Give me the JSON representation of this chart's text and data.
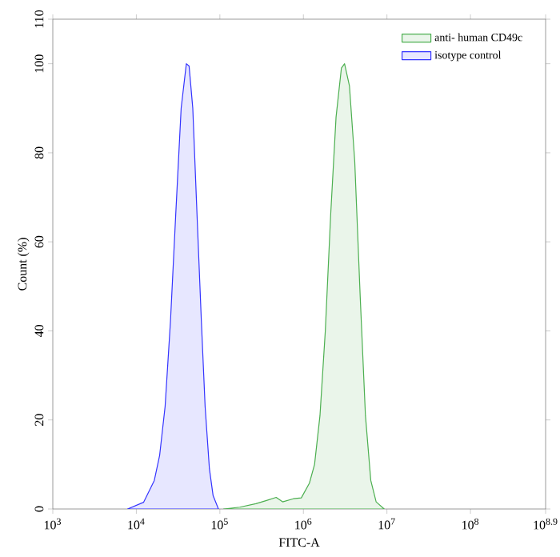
{
  "chart_data": {
    "type": "area",
    "xlabel": "FITC-A",
    "ylabel": "Count (%)",
    "log": "x",
    "xlim": [
      1000,
      794000000
    ],
    "ylim": [
      0,
      110
    ],
    "xticks": [
      {
        "value": 1000,
        "label": "10$^{3}$"
      },
      {
        "value": 10000,
        "label": "10$^{4}$"
      },
      {
        "value": 100000,
        "label": "10$^{5}$"
      },
      {
        "value": 1000000,
        "label": "10$^{6}$"
      },
      {
        "value": 10000000,
        "label": "10$^{7}$"
      },
      {
        "value": 100000000,
        "label": "10$^{8}$"
      },
      {
        "value": 794000000,
        "label": "10$^{8.9}$"
      }
    ],
    "yticks": [
      0,
      20,
      40,
      60,
      80,
      100,
      110
    ],
    "legend": "top right",
    "grid": false,
    "series": [
      {
        "name": "anti- human CD49c",
        "color": "#4caf50",
        "x": [
          111000,
          173000,
          270000,
          362000,
          472000,
          564000,
          757000,
          944000,
          1180000,
          1360000,
          1580000,
          1830000,
          2120000,
          2460000,
          2850000,
          3110000,
          3560000,
          4120000,
          4780000,
          5530000,
          6410000,
          7430000,
          9270000
        ],
        "values": [
          0,
          0.4,
          1.2,
          1.9,
          2.6,
          1.6,
          2.3,
          2.5,
          5.8,
          10,
          21,
          40,
          66,
          88,
          99,
          100,
          95,
          78,
          48,
          21,
          6.4,
          1.6,
          0
        ]
      },
      {
        "name": "isotype control",
        "color": "#3333ff",
        "x": [
          7870,
          12200,
          16400,
          19000,
          22100,
          25600,
          29600,
          34400,
          39700,
          42800,
          47400,
          53300,
          60100,
          66600,
          75000,
          83000,
          96100
        ],
        "values": [
          0,
          1.5,
          6.4,
          12,
          23,
          42,
          66,
          90,
          100,
          99.5,
          90,
          66,
          42,
          23,
          9,
          3,
          0
        ]
      }
    ]
  }
}
